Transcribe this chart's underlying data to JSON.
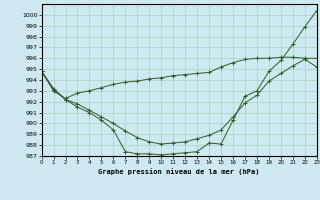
{
  "title": "Graphe pression niveau de la mer (hPa)",
  "bg_color": "#cee9f0",
  "grid_color": "#a8cfc0",
  "line_color": "#2d5a27",
  "marker": "+",
  "xlim": [
    0,
    23
  ],
  "ylim": [
    987,
    1001
  ],
  "yticks": [
    987,
    988,
    989,
    990,
    991,
    992,
    993,
    994,
    995,
    996,
    997,
    998,
    999,
    1000
  ],
  "xticks": [
    0,
    1,
    2,
    3,
    4,
    5,
    6,
    7,
    8,
    9,
    10,
    11,
    12,
    13,
    14,
    15,
    16,
    17,
    18,
    19,
    20,
    21,
    22,
    23
  ],
  "series": [
    [
      994.8,
      993.2,
      992.2,
      991.5,
      991.0,
      990.3,
      989.4,
      987.4,
      987.2,
      987.2,
      987.1,
      987.2,
      987.3,
      987.4,
      988.2,
      988.1,
      990.3,
      992.5,
      993.0,
      994.8,
      995.8,
      997.3,
      998.9,
      1000.4
    ],
    [
      994.8,
      993.1,
      992.2,
      991.8,
      991.2,
      990.6,
      990.0,
      989.3,
      988.7,
      988.3,
      988.1,
      988.2,
      988.3,
      988.6,
      988.9,
      989.4,
      990.6,
      991.9,
      992.6,
      993.9,
      994.6,
      995.3,
      995.9,
      995.2
    ],
    [
      994.8,
      993.0,
      992.3,
      992.8,
      993.0,
      993.3,
      993.6,
      993.8,
      993.9,
      994.1,
      994.2,
      994.4,
      994.5,
      994.6,
      994.7,
      995.2,
      995.6,
      995.9,
      996.0,
      996.0,
      996.1,
      996.1,
      996.0,
      996.0
    ]
  ]
}
